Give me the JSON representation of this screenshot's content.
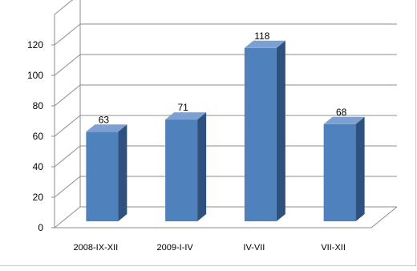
{
  "chart_data": {
    "type": "bar",
    "title": "",
    "xlabel": "",
    "ylabel": "",
    "categories": [
      "2008-IX-XII",
      "2009-I-IV",
      "IV-VII",
      "VII-XII"
    ],
    "values": [
      63,
      71,
      118,
      68
    ],
    "data_labels": [
      "63",
      "71",
      "118",
      "68"
    ],
    "y_ticks": [
      "0",
      "20",
      "40",
      "60",
      "80",
      "100",
      "120"
    ],
    "ylim": [
      0,
      140
    ],
    "grid": true,
    "legend": "none",
    "style": "3d-column",
    "colors": {
      "bar_front": "#4F81BD",
      "bar_side": "#2E5180",
      "bar_top": "#7DA0D2",
      "grid": "#8c8c8c",
      "text": "#000000"
    }
  }
}
